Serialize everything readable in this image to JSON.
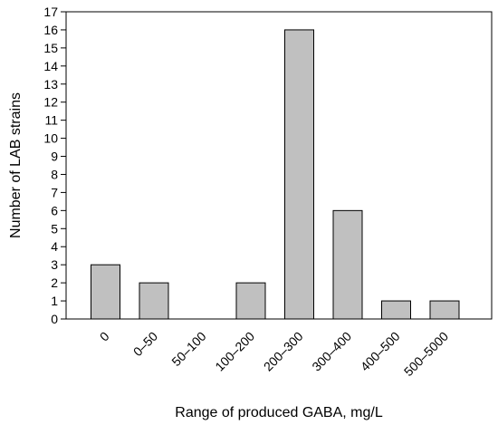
{
  "chart_data": {
    "type": "bar",
    "categories": [
      "0",
      "0–50",
      "50–100",
      "100–200",
      "200–300",
      "300–400",
      "400–500",
      "500–5000"
    ],
    "values": [
      3,
      2,
      0,
      2,
      16,
      6,
      1,
      1
    ],
    "title": "",
    "xlabel": "Range of produced GABA, mg/L",
    "ylabel": "Number of LAB strains",
    "ylim": [
      0,
      17
    ],
    "yticks": [
      0,
      1,
      2,
      3,
      4,
      5,
      6,
      7,
      8,
      9,
      10,
      11,
      12,
      13,
      14,
      15,
      16,
      17
    ],
    "grid": false,
    "legend": "none",
    "bar_color": "#c0c0c0",
    "bar_edge_color": "#000000"
  }
}
